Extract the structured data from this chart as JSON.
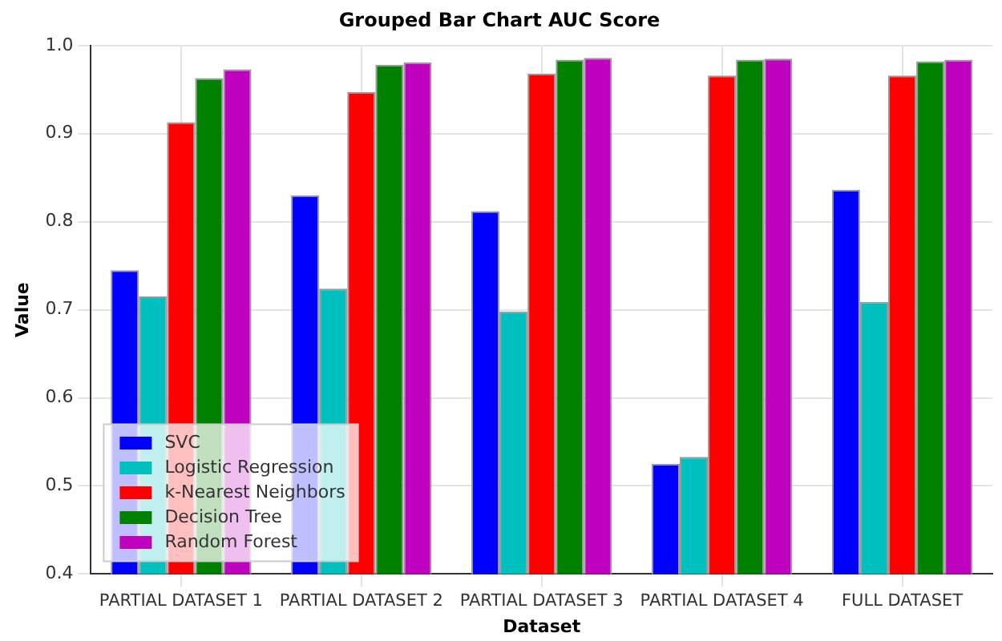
{
  "chart_data": {
    "type": "bar",
    "title": "Grouped Bar Chart AUC Score",
    "xlabel": "Dataset",
    "ylabel": "Value",
    "categories": [
      "PARTIAL DATASET 1",
      "PARTIAL DATASET 2",
      "PARTIAL DATASET 3",
      "PARTIAL DATASET 4",
      "FULL DATASET"
    ],
    "series": [
      {
        "name": "SVC",
        "color": "#0000ff",
        "values": [
          0.745,
          0.83,
          0.812,
          0.525,
          0.836
        ]
      },
      {
        "name": "Logistic Regression",
        "color": "#00bfbf",
        "values": [
          0.715,
          0.724,
          0.698,
          0.533,
          0.709
        ]
      },
      {
        "name": "k-Nearest Neighbors",
        "color": "#ff0000",
        "values": [
          0.913,
          0.947,
          0.968,
          0.966,
          0.966
        ]
      },
      {
        "name": "Decision Tree",
        "color": "#008000",
        "values": [
          0.963,
          0.978,
          0.984,
          0.984,
          0.982
        ]
      },
      {
        "name": "Random Forest",
        "color": "#bf00bf",
        "values": [
          0.973,
          0.981,
          0.986,
          0.985,
          0.984
        ]
      }
    ],
    "ylim": [
      0.4,
      1.0
    ],
    "yticks": [
      0.4,
      0.5,
      0.6,
      0.7,
      0.8,
      0.9,
      {
        "value": 1,
        "label": "1.0"
      }
    ],
    "grid": true,
    "legend": "bottom left"
  }
}
